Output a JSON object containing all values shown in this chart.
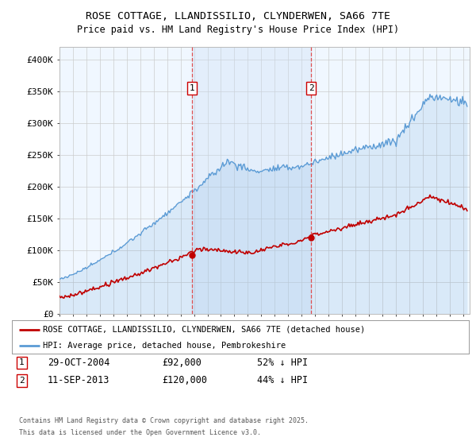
{
  "title1": "ROSE COTTAGE, LLANDISSILIO, CLYNDERWEN, SA66 7TE",
  "title2": "Price paid vs. HM Land Registry's House Price Index (HPI)",
  "ylabel_ticks": [
    "£0",
    "£50K",
    "£100K",
    "£150K",
    "£200K",
    "£250K",
    "£300K",
    "£350K",
    "£400K"
  ],
  "ytick_vals": [
    0,
    50000,
    100000,
    150000,
    200000,
    250000,
    300000,
    350000,
    400000
  ],
  "ylim": [
    0,
    420000
  ],
  "xlim_start": 1995.0,
  "xlim_end": 2025.5,
  "hpi_color": "#5b9bd5",
  "hpi_fill_color": "#cce0f5",
  "price_color": "#c00000",
  "sale1_x": 2004.83,
  "sale1_y": 92000,
  "sale1_label": "1",
  "sale1_date": "29-OCT-2004",
  "sale1_price": "£92,000",
  "sale1_note": "52% ↓ HPI",
  "sale2_x": 2013.71,
  "sale2_y": 120000,
  "sale2_label": "2",
  "sale2_date": "11-SEP-2013",
  "sale2_price": "£120,000",
  "sale2_note": "44% ↓ HPI",
  "legend_line1": "ROSE COTTAGE, LLANDISSILIO, CLYNDERWEN, SA66 7TE (detached house)",
  "legend_line2": "HPI: Average price, detached house, Pembrokeshire",
  "footer1": "Contains HM Land Registry data © Crown copyright and database right 2025.",
  "footer2": "This data is licensed under the Open Government Licence v3.0.",
  "bg_color": "#f0f7ff",
  "plot_bg": "#ffffff"
}
